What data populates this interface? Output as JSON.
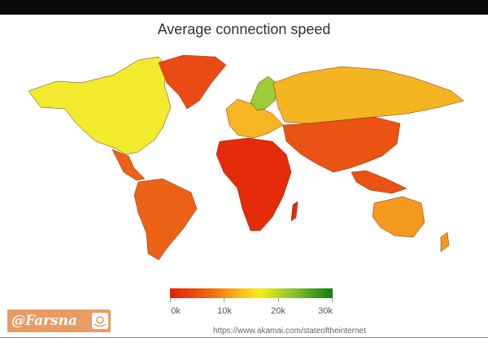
{
  "title": "Average connection speed",
  "legend": {
    "labels": [
      "0k",
      "10k",
      "20k",
      "30k"
    ],
    "stops": [
      0,
      10000,
      20000,
      30000
    ],
    "colors": [
      "#e81e06",
      "#f06a10",
      "#f8c519",
      "#f3ef11",
      "#8fc42a",
      "#0e7d12"
    ]
  },
  "regions": [
    {
      "name": "North America",
      "color": "#f2ea2d"
    },
    {
      "name": "Greenland",
      "color": "#ec4a14"
    },
    {
      "name": "South America",
      "color": "#ec6216"
    },
    {
      "name": "Europe",
      "color": "#f6b623"
    },
    {
      "name": "Scandinavia",
      "color": "#9ccc36"
    },
    {
      "name": "Russia",
      "color": "#f4b522"
    },
    {
      "name": "Africa",
      "color": "#e42b0a"
    },
    {
      "name": "Asia",
      "color": "#ea5314"
    },
    {
      "name": "Australia",
      "color": "#f39a1e"
    }
  ],
  "brand": {
    "label": "@Farsna"
  },
  "source": "https://www.akamai.com/stateoftheinternet"
}
